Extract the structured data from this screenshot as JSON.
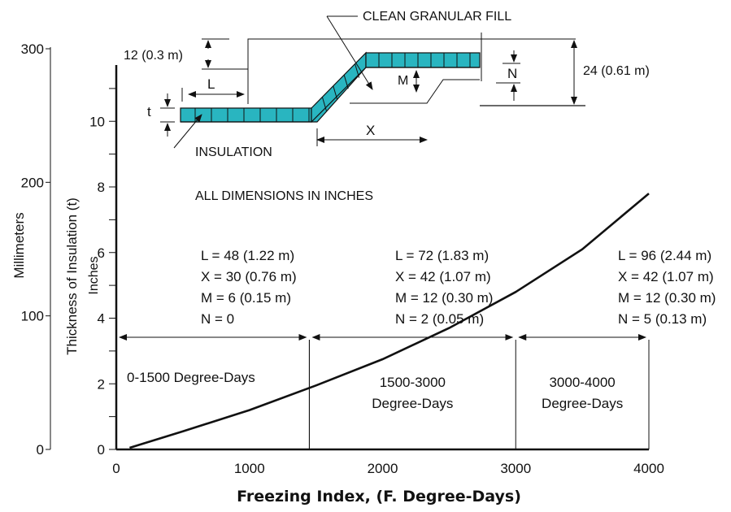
{
  "chart_data": {
    "type": "line",
    "xlabel": "Freezing Index, (F. Degree-Days)",
    "ylabel_inner": "Thickness of Insulation (t)",
    "ylabel_inner_unit": "Inches",
    "ylabel_outer": "Millimeters",
    "xlim": [
      0,
      4000
    ],
    "ylim": [
      0,
      8
    ],
    "x_ticks": [
      0,
      1000,
      2000,
      3000,
      4000
    ],
    "y_ticks": [
      0,
      2,
      4,
      6,
      8
    ],
    "y_ticks_upper": [
      10
    ],
    "y_minor_ticks": [
      1,
      3,
      5,
      7,
      9,
      11
    ],
    "mm_ticks": [
      0,
      100,
      200,
      300
    ],
    "series": [
      {
        "x": [
          100,
          500,
          1000,
          1500,
          2000,
          2500,
          3000,
          3500,
          4000
        ],
        "y": [
          0.05,
          0.55,
          1.2,
          1.95,
          2.75,
          3.7,
          4.8,
          6.1,
          7.8
        ]
      }
    ],
    "regions": [
      {
        "label_line1": "0-1500 Degree-Days",
        "label_line2": "",
        "x_start": 0,
        "x_end": 1450,
        "params": [
          "L = 48 (1.22 m)",
          "X = 30 (0.76 m)",
          "M =  6 (0.15 m)",
          "N =  0"
        ]
      },
      {
        "label_line1": "1500-3000",
        "label_line2": "Degree-Days",
        "x_start": 1450,
        "x_end": 3000,
        "params": [
          "L = 72 (1.83 m)",
          "X = 42 (1.07 m)",
          "M = 12 (0.30 m)",
          "N =   2 (0.05 m)"
        ]
      },
      {
        "label_line1": "3000-4000",
        "label_line2": "Degree-Days",
        "x_start": 3000,
        "x_end": 4000,
        "params": [
          "L = 96 (2.44 m)",
          "X = 42 (1.07 m)",
          "M = 12 (0.30 m)",
          "N =   5 (0.13 m)"
        ]
      }
    ],
    "note": "ALL DIMENSIONS IN INCHES"
  },
  "diagram": {
    "fill_label": "CLEAN GRANULAR FILL",
    "insulation_label": "INSULATION",
    "dim_12": "12 (0.3 m)",
    "dim_24": "24 (0.61 m)",
    "L": "L",
    "t": "t",
    "X": "X",
    "M": "M",
    "N": "N",
    "insulation_color": "#29b5c0"
  }
}
